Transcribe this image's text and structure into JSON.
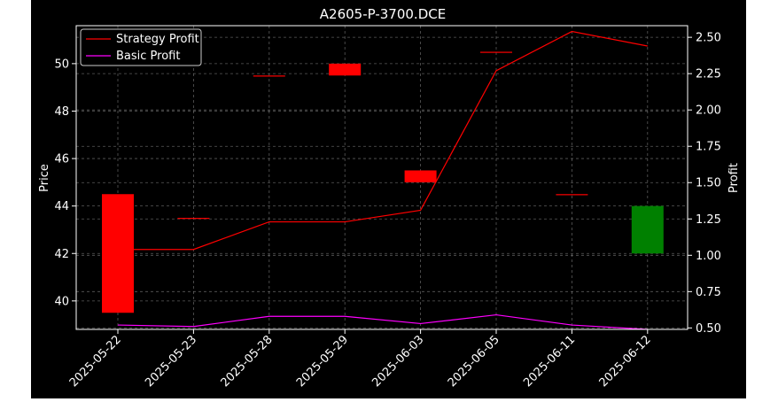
{
  "chart_data": {
    "type": "candlestick",
    "title": "A2605-P-3700.DCE",
    "ylabel_left": "Price",
    "ylabel_right": "Profit",
    "categories": [
      "2025-05-22",
      "2025-05-23",
      "2025-05-28",
      "2025-05-29",
      "2025-06-03",
      "2025-06-05",
      "2025-06-11",
      "2025-06-12"
    ],
    "ylim_left": [
      38.8,
      51.6
    ],
    "ylim_right": [
      0.49,
      2.58
    ],
    "left_ticks": [
      40,
      42,
      44,
      46,
      48,
      50
    ],
    "right_ticks": [
      "0.50",
      "0.75",
      "1.00",
      "1.25",
      "1.50",
      "1.75",
      "2.00",
      "2.25",
      "2.50"
    ],
    "candles": [
      {
        "date": "2025-05-22",
        "open": 44.5,
        "close": 39.5,
        "color": "#ff0000"
      },
      {
        "date": "2025-05-23",
        "open": 43.5,
        "close": 43.5,
        "color": "#ff0000"
      },
      {
        "date": "2025-05-28",
        "open": 49.5,
        "close": 49.5,
        "color": "#ff0000"
      },
      {
        "date": "2025-05-29",
        "open": 50.0,
        "close": 49.5,
        "color": "#ff0000"
      },
      {
        "date": "2025-06-03",
        "open": 45.5,
        "close": 45.0,
        "color": "#ff0000"
      },
      {
        "date": "2025-06-05",
        "open": 50.5,
        "close": 50.5,
        "color": "#ff0000"
      },
      {
        "date": "2025-06-11",
        "open": 44.5,
        "close": 44.5,
        "color": "#ff0000"
      },
      {
        "date": "2025-06-12",
        "open": 42.0,
        "close": 44.0,
        "color": "#008000"
      }
    ],
    "series": [
      {
        "name": "Strategy Profit",
        "color": "#ff0000",
        "values": [
          1.04,
          1.04,
          1.23,
          1.23,
          1.31,
          2.27,
          2.54,
          2.44
        ]
      },
      {
        "name": "Basic Profit",
        "color": "#ff00ff",
        "values": [
          0.52,
          0.51,
          0.58,
          0.58,
          0.53,
          0.59,
          0.52,
          0.49
        ]
      }
    ],
    "grid": true,
    "legend": "top-left"
  },
  "colors": {
    "figure_background": "#ffffff",
    "axes_background": "#000000",
    "text": "#ffffff",
    "grid": "#808080"
  }
}
